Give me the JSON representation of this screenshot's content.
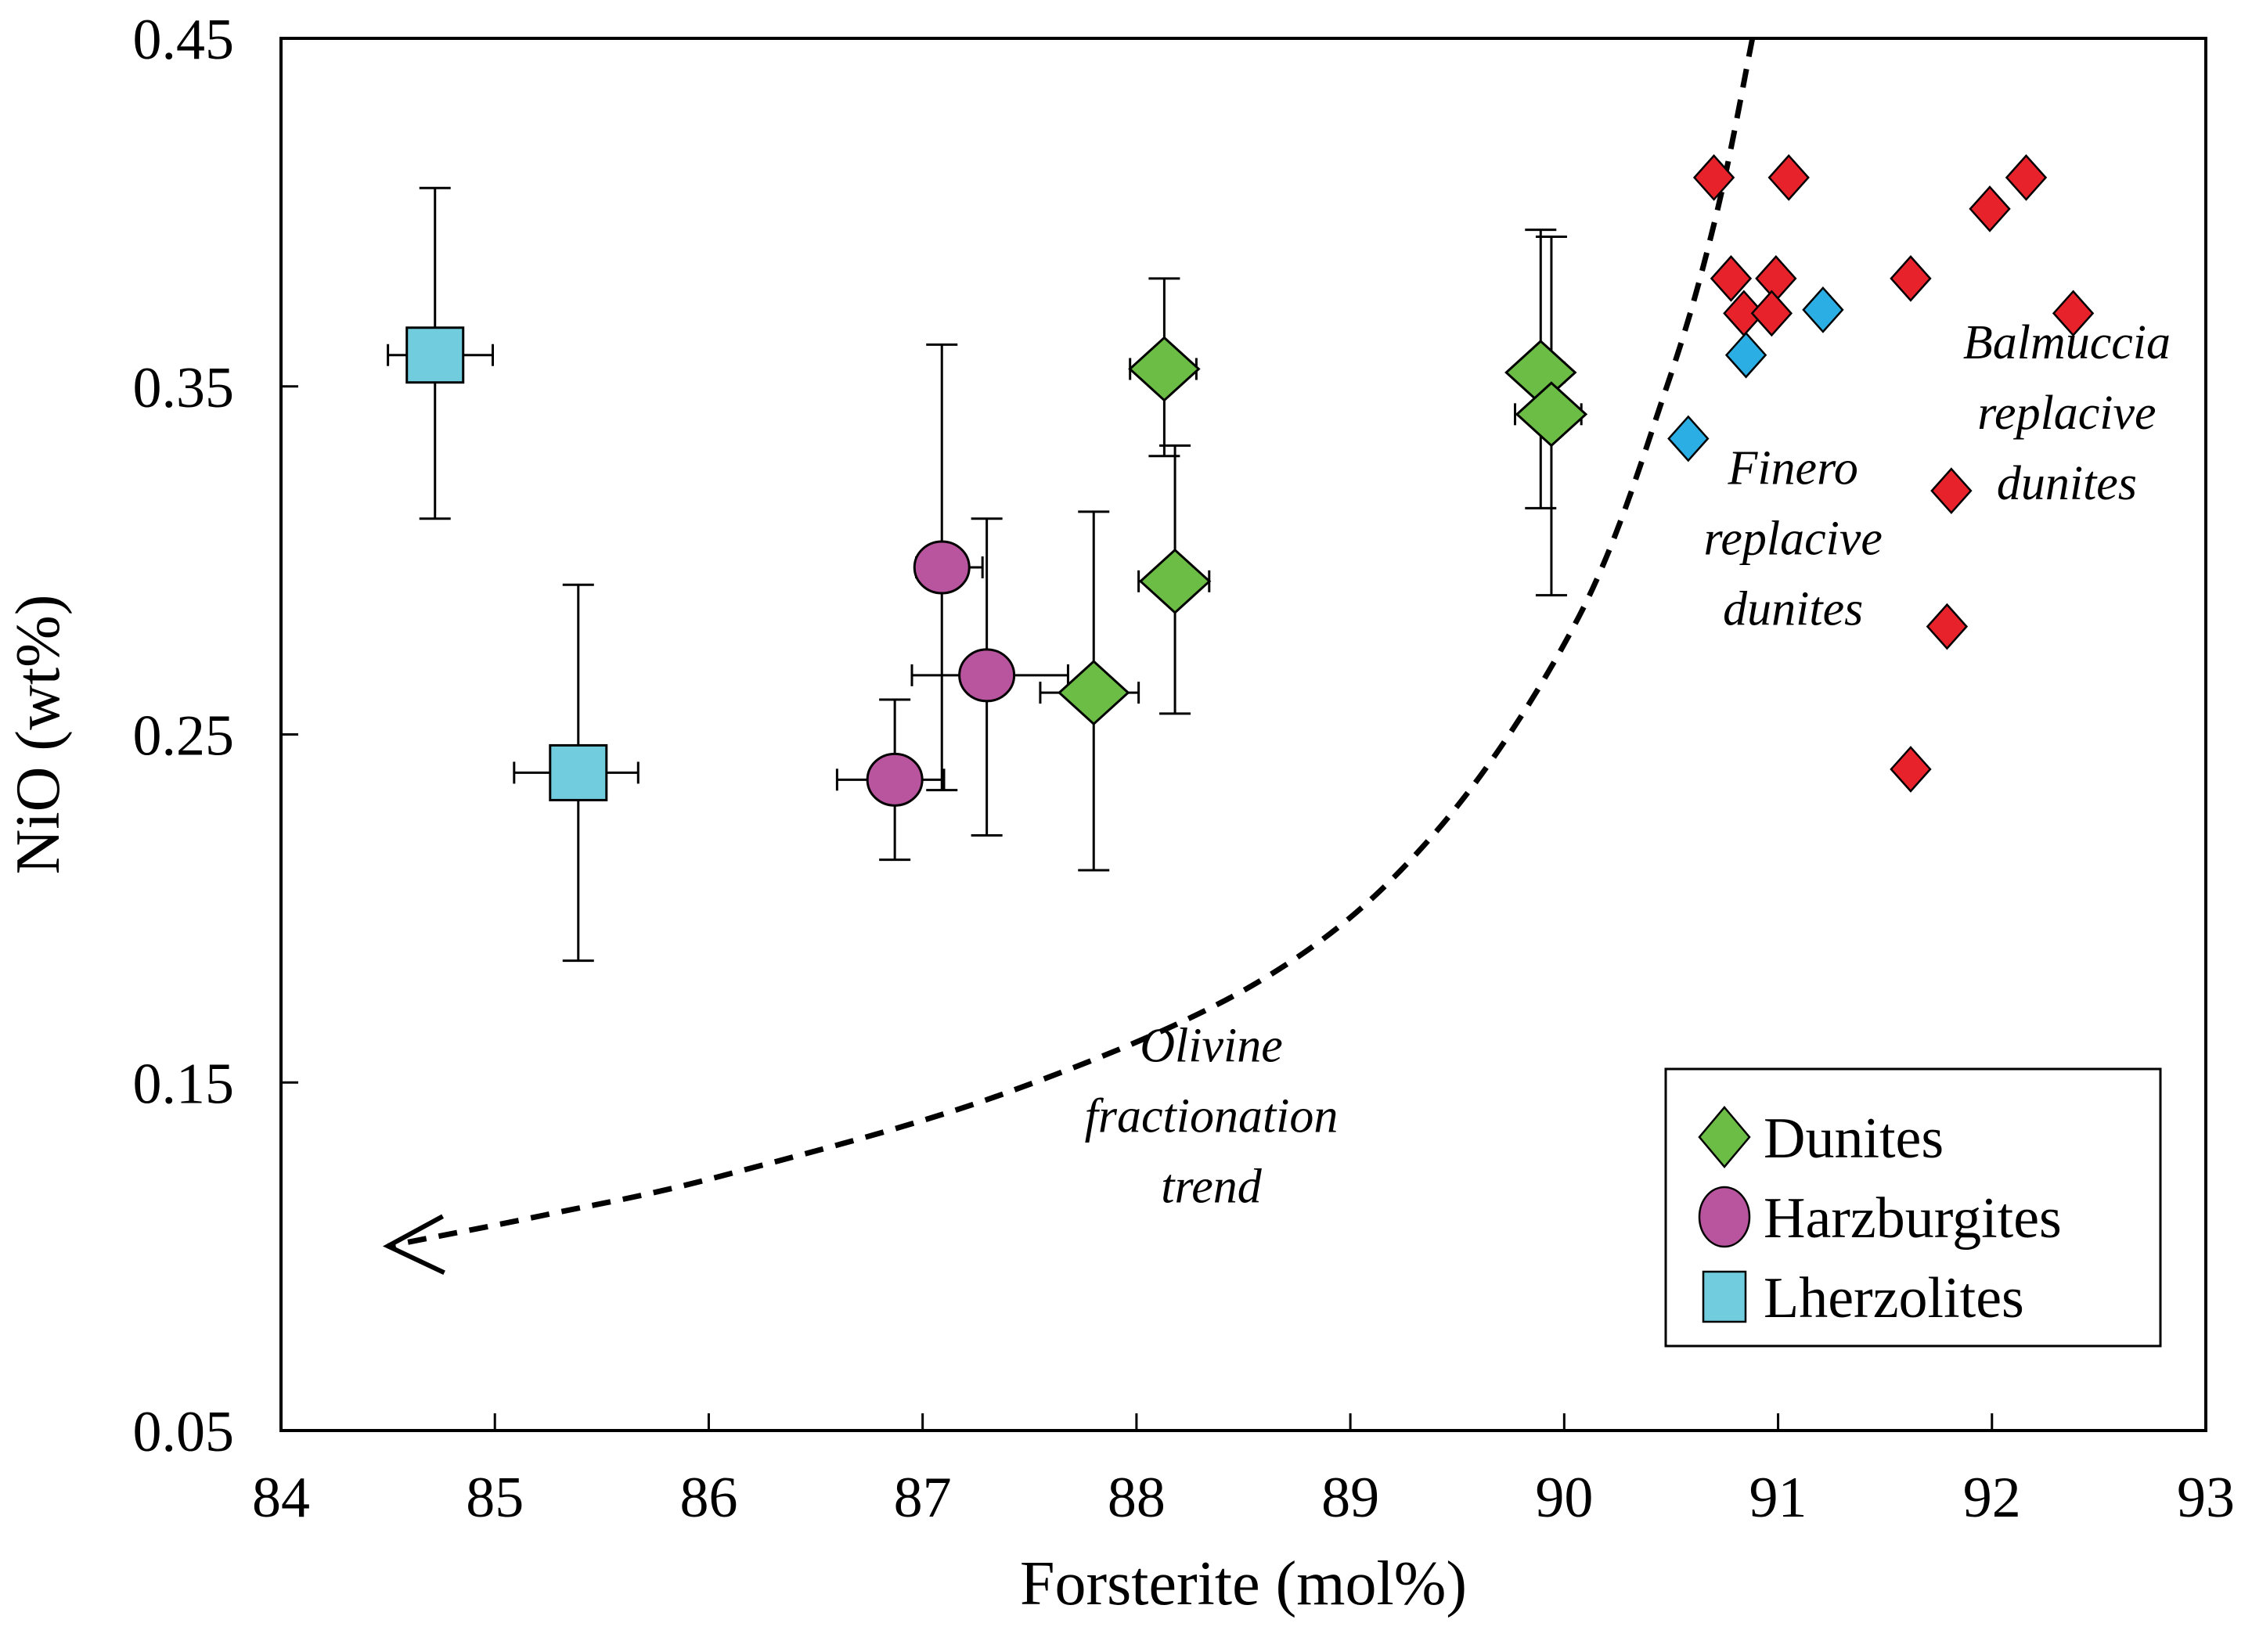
{
  "chart_data": {
    "type": "scatter",
    "title": "",
    "xlabel": "Forsterite (mol%)",
    "ylabel": "NiO (wt%)",
    "xlim": [
      84,
      93
    ],
    "ylim": [
      0.05,
      0.45
    ],
    "x_ticks": [
      "84",
      "85",
      "86",
      "87",
      "88",
      "89",
      "90",
      "91",
      "92",
      "93"
    ],
    "y_ticks": [
      "0.05",
      "0.15",
      "0.25",
      "0.35",
      "0.45"
    ],
    "grid": false,
    "legend_position": "bottom-right",
    "series": [
      {
        "name": "Dunites",
        "marker": "diamond",
        "color": "#6CBD45",
        "in_legend": true,
        "points": [
          {
            "x": 88.13,
            "y": 0.355,
            "x_err": [
              87.97,
              88.28
            ],
            "y_err": [
              0.33,
              0.381
            ]
          },
          {
            "x": 88.18,
            "y": 0.294,
            "x_err": [
              88.01,
              88.34
            ],
            "y_err": [
              0.256,
              0.333
            ]
          },
          {
            "x": 87.8,
            "y": 0.262,
            "x_err": [
              87.55,
              88.01
            ],
            "y_err": [
              0.211,
              0.314
            ]
          },
          {
            "x": 89.89,
            "y": 0.354,
            "x_err": [
              89.8,
              90.0
            ],
            "y_err": [
              0.315,
              0.395
            ]
          },
          {
            "x": 89.94,
            "y": 0.342,
            "x_err": [
              89.77,
              90.08
            ],
            "y_err": [
              0.29,
              0.393
            ]
          }
        ]
      },
      {
        "name": "Harzburgites",
        "marker": "circle",
        "color": "#B8559E",
        "in_legend": true,
        "points": [
          {
            "x": 87.09,
            "y": 0.298,
            "x_err": [
              86.97,
              87.28
            ],
            "y_err": [
              0.234,
              0.362
            ]
          },
          {
            "x": 87.3,
            "y": 0.267,
            "x_err": [
              86.95,
              87.68
            ],
            "y_err": [
              0.221,
              0.312
            ]
          },
          {
            "x": 86.87,
            "y": 0.237,
            "x_err": [
              86.6,
              87.1
            ],
            "y_err": [
              0.214,
              0.26
            ]
          }
        ]
      },
      {
        "name": "Lherzolites",
        "marker": "square",
        "color": "#71CDDD",
        "in_legend": true,
        "points": [
          {
            "x": 84.72,
            "y": 0.359,
            "x_err": [
              84.5,
              84.99
            ],
            "y_err": [
              0.312,
              0.407
            ]
          },
          {
            "x": 85.39,
            "y": 0.239,
            "x_err": [
              85.09,
              85.67
            ],
            "y_err": [
              0.185,
              0.293
            ]
          }
        ]
      },
      {
        "name": "Finero replacive dunites",
        "marker": "small-diamond",
        "color": "#2BAEE3",
        "in_legend": false,
        "points": [
          {
            "x": 90.58,
            "y": 0.335
          },
          {
            "x": 90.85,
            "y": 0.359
          },
          {
            "x": 91.21,
            "y": 0.372
          }
        ]
      },
      {
        "name": "Balmuccia replacive dunites",
        "marker": "small-diamond",
        "color": "#E8222A",
        "in_legend": false,
        "points": [
          {
            "x": 90.7,
            "y": 0.41
          },
          {
            "x": 91.05,
            "y": 0.41
          },
          {
            "x": 90.78,
            "y": 0.381
          },
          {
            "x": 90.99,
            "y": 0.381
          },
          {
            "x": 90.84,
            "y": 0.371
          },
          {
            "x": 90.97,
            "y": 0.371
          },
          {
            "x": 91.62,
            "y": 0.381
          },
          {
            "x": 91.99,
            "y": 0.401
          },
          {
            "x": 92.16,
            "y": 0.41
          },
          {
            "x": 92.38,
            "y": 0.371
          },
          {
            "x": 91.81,
            "y": 0.32
          },
          {
            "x": 91.79,
            "y": 0.281
          },
          {
            "x": 91.62,
            "y": 0.24
          }
        ]
      }
    ],
    "trend_curve": {
      "name": "Olivine fractionation trend",
      "style": "dashed-arrow",
      "points": [
        {
          "x": 90.88,
          "y": 0.45
        },
        {
          "x": 90.71,
          "y": 0.399
        },
        {
          "x": 90.48,
          "y": 0.35
        },
        {
          "x": 90.07,
          "y": 0.284
        },
        {
          "x": 89.4,
          "y": 0.222
        },
        {
          "x": 88.6,
          "y": 0.18
        },
        {
          "x": 87.39,
          "y": 0.147
        },
        {
          "x": 86.05,
          "y": 0.123
        },
        {
          "x": 85.24,
          "y": 0.112
        },
        {
          "x": 84.5,
          "y": 0.103
        }
      ]
    },
    "annotations": [
      {
        "lines": [
          "Olivine",
          "fractionation",
          "trend"
        ],
        "x": 88.35,
        "y": 0.156
      },
      {
        "lines": [
          "Finero",
          "replacive",
          "dunites"
        ],
        "x": 91.07,
        "y": 0.322
      },
      {
        "lines": [
          "Balmuccia",
          "replacive",
          "dunites"
        ],
        "x": 92.35,
        "y": 0.358
      }
    ],
    "legend": [
      {
        "label": "Dunites",
        "marker": "diamond",
        "color": "#6CBD45"
      },
      {
        "label": "Harzburgites",
        "marker": "circle",
        "color": "#B8559E"
      },
      {
        "label": "Lherzolites",
        "marker": "square",
        "color": "#71CDDD"
      }
    ]
  }
}
